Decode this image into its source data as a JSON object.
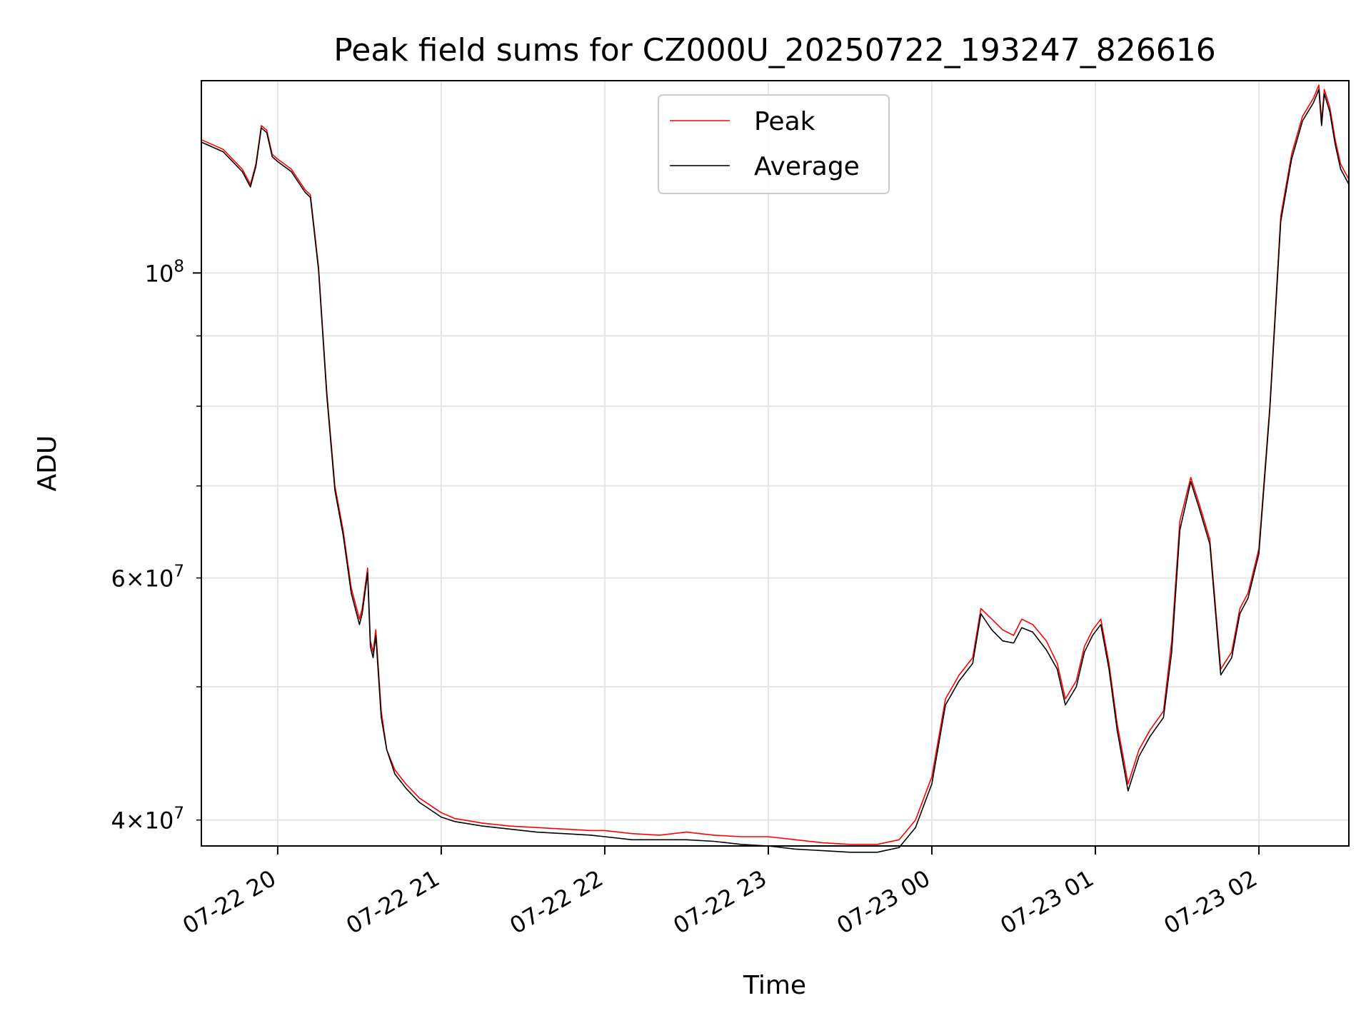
{
  "chart_data": {
    "type": "line",
    "title": "Peak field sums for CZ000U_20250722_193247_826616",
    "xlabel": "Time",
    "ylabel": "ADU",
    "x_scale": "time",
    "y_scale": "log",
    "grid": true,
    "legend_position": "top-center",
    "xlim": [
      "2025-07-22 19:32",
      "2025-07-23 02:33"
    ],
    "ylim": [
      38300000,
      138000000
    ],
    "x_ticks": [
      {
        "value": "2025-07-22 20:00",
        "label": "07-22 20"
      },
      {
        "value": "2025-07-22 21:00",
        "label": "07-22 21"
      },
      {
        "value": "2025-07-22 22:00",
        "label": "07-22 22"
      },
      {
        "value": "2025-07-22 23:00",
        "label": "07-22 23"
      },
      {
        "value": "2025-07-23 00:00",
        "label": "07-23 00"
      },
      {
        "value": "2025-07-23 01:00",
        "label": "07-23 01"
      },
      {
        "value": "2025-07-23 02:00",
        "label": "07-23 02"
      }
    ],
    "y_major_ticks": [
      {
        "value": 100000000,
        "label": "10^8"
      }
    ],
    "y_minor_ticks": [
      {
        "value": 40000000,
        "label": "4×10^7"
      },
      {
        "value": 50000000,
        "label": ""
      },
      {
        "value": 60000000,
        "label": "6×10^7"
      },
      {
        "value": 70000000,
        "label": ""
      },
      {
        "value": 80000000,
        "label": ""
      },
      {
        "value": 90000000,
        "label": ""
      }
    ],
    "series": [
      {
        "name": "Peak",
        "color": "#ff0000",
        "x": [
          "2025-07-22 19:32",
          "2025-07-22 19:40",
          "2025-07-22 19:47",
          "2025-07-22 19:50",
          "2025-07-22 19:52",
          "2025-07-22 19:54",
          "2025-07-22 19:56",
          "2025-07-22 19:58",
          "2025-07-22 20:00",
          "2025-07-22 20:05",
          "2025-07-22 20:10",
          "2025-07-22 20:12",
          "2025-07-22 20:15",
          "2025-07-22 20:18",
          "2025-07-22 20:21",
          "2025-07-22 20:24",
          "2025-07-22 20:27",
          "2025-07-22 20:30",
          "2025-07-22 20:31",
          "2025-07-22 20:33",
          "2025-07-22 20:34",
          "2025-07-22 20:35",
          "2025-07-22 20:36",
          "2025-07-22 20:38",
          "2025-07-22 20:40",
          "2025-07-22 20:43",
          "2025-07-22 20:47",
          "2025-07-22 20:52",
          "2025-07-22 21:00",
          "2025-07-22 21:05",
          "2025-07-22 21:15",
          "2025-07-22 21:25",
          "2025-07-22 21:35",
          "2025-07-22 21:45",
          "2025-07-22 21:55",
          "2025-07-22 22:00",
          "2025-07-22 22:10",
          "2025-07-22 22:20",
          "2025-07-22 22:30",
          "2025-07-22 22:40",
          "2025-07-22 22:50",
          "2025-07-22 23:00",
          "2025-07-22 23:10",
          "2025-07-22 23:20",
          "2025-07-22 23:30",
          "2025-07-22 23:40",
          "2025-07-22 23:48",
          "2025-07-22 23:54",
          "2025-07-23 00:00",
          "2025-07-23 00:05",
          "2025-07-23 00:10",
          "2025-07-23 00:15",
          "2025-07-23 00:18",
          "2025-07-23 00:22",
          "2025-07-23 00:26",
          "2025-07-23 00:30",
          "2025-07-23 00:33",
          "2025-07-23 00:37",
          "2025-07-23 00:42",
          "2025-07-23 00:46",
          "2025-07-23 00:49",
          "2025-07-23 00:53",
          "2025-07-23 00:56",
          "2025-07-23 00:59",
          "2025-07-23 01:02",
          "2025-07-23 01:05",
          "2025-07-23 01:08",
          "2025-07-23 01:12",
          "2025-07-23 01:16",
          "2025-07-23 01:20",
          "2025-07-23 01:25",
          "2025-07-23 01:28",
          "2025-07-23 01:31",
          "2025-07-23 01:35",
          "2025-07-23 01:38",
          "2025-07-23 01:42",
          "2025-07-23 01:46",
          "2025-07-23 01:50",
          "2025-07-23 01:53",
          "2025-07-23 01:56",
          "2025-07-23 02:00",
          "2025-07-23 02:04",
          "2025-07-23 02:08",
          "2025-07-23 02:12",
          "2025-07-23 02:16",
          "2025-07-23 02:20",
          "2025-07-23 02:22",
          "2025-07-23 02:23",
          "2025-07-23 02:24",
          "2025-07-23 02:26",
          "2025-07-23 02:28",
          "2025-07-23 02:30",
          "2025-07-23 02:33"
        ],
        "y": [
          125000000,
          123000000,
          119000000,
          116000000,
          120000000,
          128000000,
          127000000,
          122000000,
          121000000,
          119000000,
          115000000,
          114000000,
          101000000,
          82000000,
          70000000,
          65000000,
          59000000,
          56000000,
          57000000,
          61000000,
          54000000,
          53000000,
          55000000,
          48000000,
          45000000,
          43500000,
          42500000,
          41500000,
          40500000,
          40100000,
          39800000,
          39600000,
          39500000,
          39400000,
          39300000,
          39300000,
          39100000,
          39000000,
          39200000,
          39000000,
          38900000,
          38900000,
          38700000,
          38500000,
          38400000,
          38400000,
          38700000,
          40000000,
          43000000,
          49000000,
          51000000,
          52500000,
          57000000,
          56000000,
          55000000,
          54500000,
          56000000,
          55500000,
          54000000,
          52000000,
          49000000,
          50500000,
          53500000,
          55000000,
          56000000,
          52000000,
          47000000,
          42500000,
          45000000,
          46500000,
          48000000,
          54000000,
          66000000,
          71000000,
          68000000,
          64000000,
          51500000,
          53000000,
          57000000,
          58500000,
          63000000,
          80000000,
          110000000,
          122000000,
          130000000,
          134000000,
          137000000,
          129000000,
          136000000,
          132000000,
          125000000,
          120000000,
          117000000
        ]
      },
      {
        "name": "Average",
        "color": "#000000",
        "x": [
          "2025-07-22 19:32",
          "2025-07-22 19:40",
          "2025-07-22 19:47",
          "2025-07-22 19:50",
          "2025-07-22 19:52",
          "2025-07-22 19:54",
          "2025-07-22 19:56",
          "2025-07-22 19:58",
          "2025-07-22 20:00",
          "2025-07-22 20:05",
          "2025-07-22 20:10",
          "2025-07-22 20:12",
          "2025-07-22 20:15",
          "2025-07-22 20:18",
          "2025-07-22 20:21",
          "2025-07-22 20:24",
          "2025-07-22 20:27",
          "2025-07-22 20:30",
          "2025-07-22 20:31",
          "2025-07-22 20:33",
          "2025-07-22 20:34",
          "2025-07-22 20:35",
          "2025-07-22 20:36",
          "2025-07-22 20:38",
          "2025-07-22 20:40",
          "2025-07-22 20:43",
          "2025-07-22 20:47",
          "2025-07-22 20:52",
          "2025-07-22 21:00",
          "2025-07-22 21:05",
          "2025-07-22 21:15",
          "2025-07-22 21:25",
          "2025-07-22 21:35",
          "2025-07-22 21:45",
          "2025-07-22 21:55",
          "2025-07-22 22:00",
          "2025-07-22 22:10",
          "2025-07-22 22:20",
          "2025-07-22 22:30",
          "2025-07-22 22:40",
          "2025-07-22 22:50",
          "2025-07-22 23:00",
          "2025-07-22 23:10",
          "2025-07-22 23:20",
          "2025-07-22 23:30",
          "2025-07-22 23:40",
          "2025-07-22 23:48",
          "2025-07-22 23:54",
          "2025-07-23 00:00",
          "2025-07-23 00:05",
          "2025-07-23 00:10",
          "2025-07-23 00:15",
          "2025-07-23 00:18",
          "2025-07-23 00:22",
          "2025-07-23 00:26",
          "2025-07-23 00:30",
          "2025-07-23 00:33",
          "2025-07-23 00:37",
          "2025-07-23 00:42",
          "2025-07-23 00:46",
          "2025-07-23 00:49",
          "2025-07-23 00:53",
          "2025-07-23 00:56",
          "2025-07-23 00:59",
          "2025-07-23 01:02",
          "2025-07-23 01:05",
          "2025-07-23 01:08",
          "2025-07-23 01:12",
          "2025-07-23 01:16",
          "2025-07-23 01:20",
          "2025-07-23 01:25",
          "2025-07-23 01:28",
          "2025-07-23 01:31",
          "2025-07-23 01:35",
          "2025-07-23 01:38",
          "2025-07-23 01:42",
          "2025-07-23 01:46",
          "2025-07-23 01:50",
          "2025-07-23 01:53",
          "2025-07-23 01:56",
          "2025-07-23 02:00",
          "2025-07-23 02:04",
          "2025-07-23 02:08",
          "2025-07-23 02:12",
          "2025-07-23 02:16",
          "2025-07-23 02:20",
          "2025-07-23 02:22",
          "2025-07-23 02:23",
          "2025-07-23 02:24",
          "2025-07-23 02:26",
          "2025-07-23 02:28",
          "2025-07-23 02:30",
          "2025-07-23 02:33"
        ],
        "y": [
          124500000,
          122500000,
          118500000,
          115500000,
          119500000,
          127500000,
          126500000,
          121500000,
          120500000,
          118500000,
          114500000,
          113500000,
          100500000,
          81500000,
          69500000,
          64500000,
          58500000,
          55500000,
          56500000,
          60500000,
          53500000,
          52500000,
          54500000,
          47500000,
          45000000,
          43200000,
          42200000,
          41200000,
          40200000,
          39900000,
          39600000,
          39400000,
          39200000,
          39100000,
          39000000,
          38900000,
          38700000,
          38700000,
          38700000,
          38600000,
          38400000,
          38300000,
          38100000,
          38000000,
          37900000,
          37900000,
          38200000,
          39500000,
          42500000,
          48500000,
          50500000,
          52000000,
          56500000,
          55000000,
          54000000,
          53800000,
          55200000,
          54800000,
          53200000,
          51500000,
          48500000,
          50000000,
          53000000,
          54500000,
          55500000,
          51500000,
          46500000,
          42000000,
          44500000,
          46000000,
          47500000,
          53000000,
          65000000,
          70500000,
          67500000,
          63500000,
          51000000,
          52500000,
          56500000,
          58000000,
          62500000,
          79500000,
          109000000,
          121000000,
          129000000,
          133000000,
          136000000,
          128000000,
          135000000,
          131000000,
          124000000,
          119000000,
          116000000
        ]
      }
    ]
  }
}
